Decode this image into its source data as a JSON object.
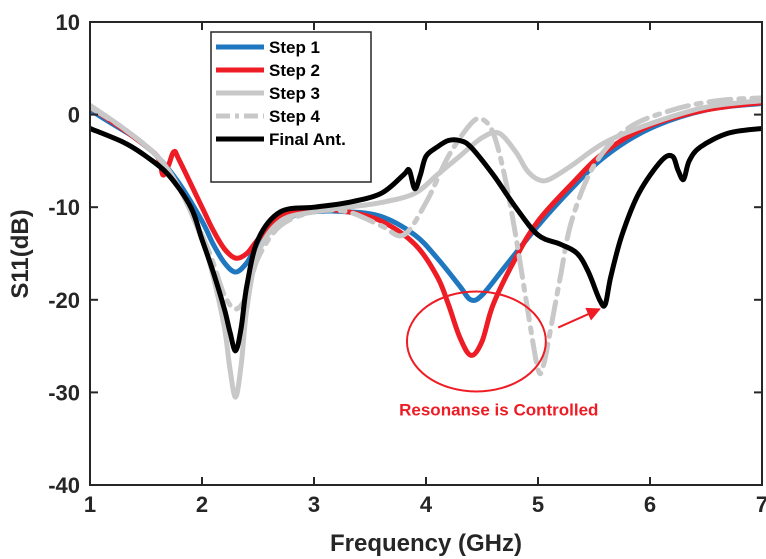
{
  "chart_data": {
    "type": "line",
    "xlabel": "Frequency (GHz)",
    "ylabel": "S11(dB)",
    "xlim": [
      1,
      7
    ],
    "ylim": [
      -40,
      10
    ],
    "xticks": [
      1,
      2,
      3,
      4,
      5,
      6,
      7
    ],
    "yticks": [
      10,
      0,
      -10,
      -20,
      -30,
      -40
    ],
    "grid": false,
    "legend_position": "top-left",
    "series": [
      {
        "name": "Step 1",
        "color": "#1f77c0",
        "style": "solid",
        "x": [
          1.0,
          1.2,
          1.4,
          1.6,
          1.8,
          2.0,
          2.1,
          2.2,
          2.3,
          2.4,
          2.5,
          2.7,
          3.0,
          3.3,
          3.6,
          3.9,
          4.1,
          4.3,
          4.4,
          4.5,
          4.7,
          5.0,
          5.3,
          5.6,
          6.0,
          6.5,
          7.0
        ],
        "y": [
          0.5,
          -1.0,
          -2.5,
          -4.5,
          -7.5,
          -11.5,
          -14.0,
          -16.0,
          -17.0,
          -16.0,
          -14.0,
          -11.5,
          -10.5,
          -10.5,
          -11.0,
          -13.0,
          -15.5,
          -18.5,
          -20.0,
          -19.5,
          -16.5,
          -12.0,
          -8.0,
          -4.5,
          -1.5,
          0.5,
          1.2
        ]
      },
      {
        "name": "Step 2",
        "color": "#ee1c24",
        "style": "solid",
        "x": [
          1.0,
          1.2,
          1.4,
          1.6,
          1.65,
          1.7,
          1.75,
          1.8,
          2.0,
          2.1,
          2.2,
          2.3,
          2.4,
          2.5,
          2.7,
          3.0,
          3.3,
          3.6,
          3.9,
          4.1,
          4.2,
          4.3,
          4.4,
          4.5,
          4.6,
          4.8,
          5.0,
          5.3,
          5.6,
          6.0,
          6.5,
          7.0
        ],
        "y": [
          0.8,
          -0.8,
          -2.5,
          -4.5,
          -6.5,
          -5.5,
          -4.0,
          -5.0,
          -10.0,
          -12.5,
          -14.5,
          -15.5,
          -15.0,
          -13.5,
          -11.0,
          -10.2,
          -10.5,
          -11.5,
          -14.0,
          -17.5,
          -20.5,
          -24.0,
          -26.0,
          -24.5,
          -20.5,
          -15.5,
          -11.5,
          -7.5,
          -4.0,
          -1.2,
          0.5,
          1.3
        ]
      },
      {
        "name": "Step 3",
        "color": "#c8c8c8",
        "style": "solid",
        "x": [
          1.0,
          1.3,
          1.6,
          1.8,
          2.0,
          2.1,
          2.2,
          2.25,
          2.3,
          2.35,
          2.4,
          2.5,
          2.7,
          3.0,
          3.3,
          3.6,
          3.9,
          4.1,
          4.3,
          4.5,
          4.65,
          4.8,
          4.9,
          5.0,
          5.1,
          5.3,
          5.6,
          6.0,
          6.5,
          7.0
        ],
        "y": [
          1.0,
          -1.5,
          -4.5,
          -8.0,
          -13.5,
          -17.5,
          -23.0,
          -27.5,
          -30.5,
          -27.0,
          -21.0,
          -15.0,
          -11.5,
          -10.5,
          -10.0,
          -9.5,
          -8.5,
          -6.5,
          -4.5,
          -2.5,
          -2.0,
          -4.0,
          -6.0,
          -7.0,
          -7.0,
          -5.5,
          -3.0,
          -1.0,
          0.8,
          1.5
        ]
      },
      {
        "name": "Step 4",
        "color": "#c8c8c8",
        "style": "dashed",
        "x": [
          1.0,
          1.3,
          1.6,
          1.8,
          2.0,
          2.1,
          2.2,
          2.3,
          2.4,
          2.5,
          2.7,
          3.0,
          3.3,
          3.6,
          3.8,
          4.0,
          4.2,
          4.4,
          4.5,
          4.6,
          4.7,
          4.8,
          4.9,
          5.0,
          5.05,
          5.1,
          5.2,
          5.3,
          5.5,
          5.8,
          6.2,
          6.6,
          7.0
        ],
        "y": [
          0.8,
          -1.5,
          -4.5,
          -8.0,
          -13.0,
          -16.0,
          -19.5,
          -21.0,
          -19.5,
          -15.5,
          -12.0,
          -10.5,
          -10.5,
          -12.0,
          -13.0,
          -9.5,
          -4.5,
          -1.0,
          -0.5,
          -2.0,
          -6.5,
          -13.0,
          -20.5,
          -27.5,
          -27.0,
          -24.0,
          -17.5,
          -11.5,
          -5.5,
          -1.5,
          0.5,
          1.5,
          1.8
        ]
      },
      {
        "name": "Final Ant.",
        "color": "#000000",
        "style": "solid",
        "x": [
          1.0,
          1.3,
          1.5,
          1.7,
          1.9,
          2.0,
          2.1,
          2.2,
          2.25,
          2.3,
          2.35,
          2.4,
          2.5,
          2.7,
          3.0,
          3.3,
          3.6,
          3.8,
          3.85,
          3.9,
          3.95,
          4.0,
          4.1,
          4.2,
          4.3,
          4.4,
          4.6,
          4.8,
          5.0,
          5.2,
          5.35,
          5.45,
          5.55,
          5.6,
          5.65,
          5.75,
          5.9,
          6.1,
          6.2,
          6.25,
          6.3,
          6.35,
          6.45,
          6.7,
          7.0
        ],
        "y": [
          -1.5,
          -3.0,
          -4.5,
          -6.5,
          -10.0,
          -13.5,
          -17.0,
          -21.0,
          -23.5,
          -25.5,
          -23.0,
          -18.5,
          -13.5,
          -10.5,
          -10.0,
          -9.5,
          -8.5,
          -6.5,
          -6.0,
          -8.0,
          -6.5,
          -4.5,
          -3.5,
          -2.8,
          -2.8,
          -3.5,
          -6.5,
          -10.0,
          -13.0,
          -14.0,
          -15.0,
          -17.0,
          -20.0,
          -20.5,
          -17.5,
          -13.0,
          -8.5,
          -5.0,
          -4.5,
          -6.0,
          -7.0,
          -5.0,
          -3.5,
          -2.0,
          -1.5
        ]
      }
    ],
    "annotations": [
      {
        "text": "Resonanse is Controlled",
        "color": "#ee1c24",
        "x": 4.65,
        "y": -32.5,
        "ellipse": {
          "cx": 4.45,
          "cy": -24.5,
          "rx": 0.62,
          "ry": 5.4
        },
        "arrow": {
          "x1": 5.18,
          "y1": -23.0,
          "x2": 5.55,
          "y2": -21.0
        }
      }
    ]
  }
}
